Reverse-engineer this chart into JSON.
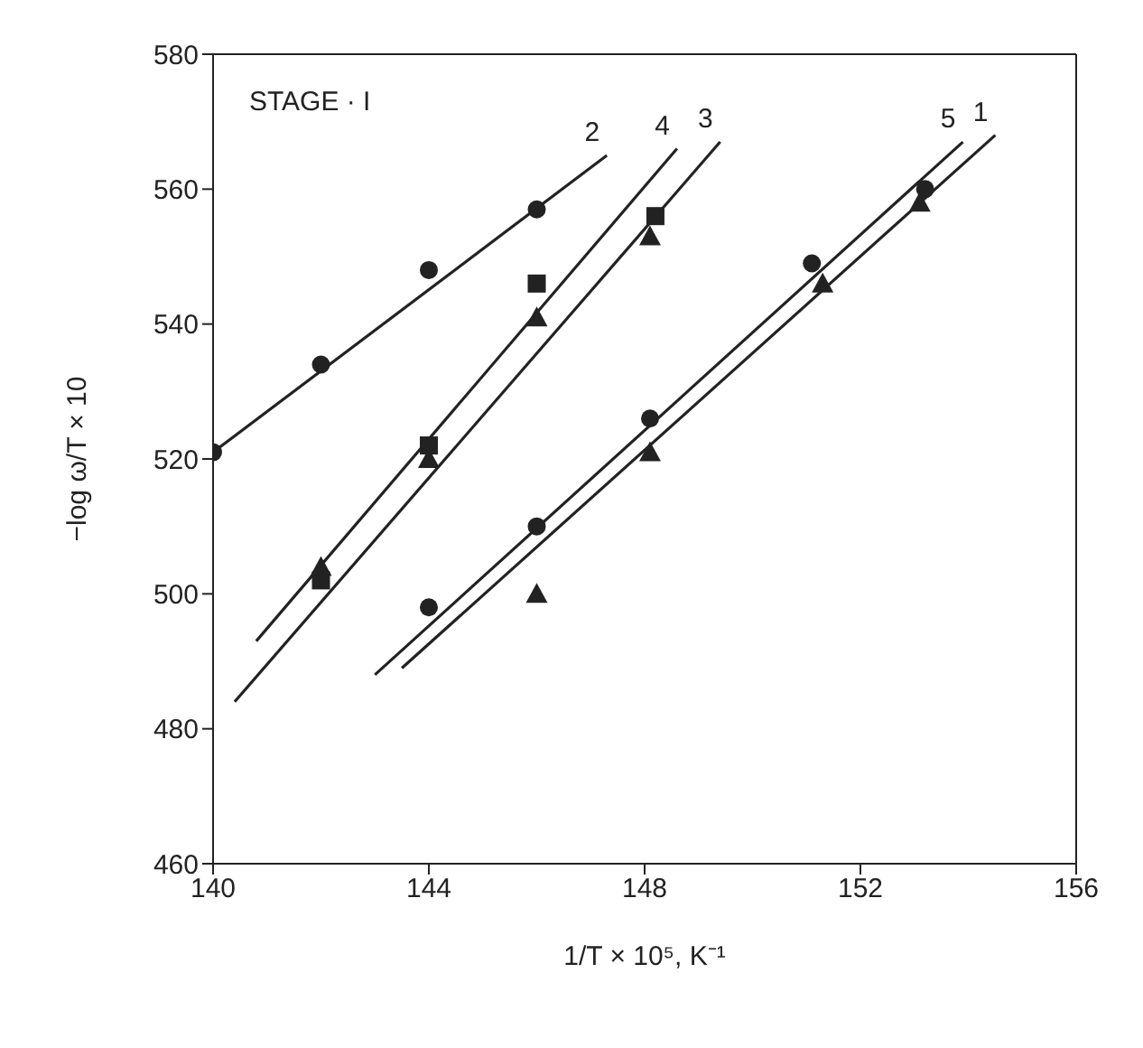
{
  "chart_data": {
    "type": "scatter",
    "xlabel": "1/T × 10⁵, K⁻¹",
    "ylabel": "−log ω/T × 10",
    "annotations": [
      "STAGE · I"
    ],
    "xlim": [
      140,
      156
    ],
    "xticks": [
      140,
      144,
      148,
      152,
      156
    ],
    "ylim": [
      460,
      580
    ],
    "yticks": [
      460,
      480,
      500,
      520,
      540,
      560,
      580
    ],
    "grid": false,
    "legend": false,
    "series": [
      {
        "marker": "triangle",
        "color": "#222222",
        "x": [
          153.1,
          151.3,
          148.1,
          146.0
        ],
        "values": [
          558,
          546,
          521,
          500
        ]
      },
      {
        "marker": "circle",
        "color": "#222222",
        "x": [
          146.0,
          144.0,
          142.0,
          140.0
        ],
        "values": [
          557,
          548,
          534,
          521
        ]
      },
      {
        "marker": "triangle",
        "color": "#222222",
        "x": [
          148.1,
          146.0,
          144.0,
          142.0
        ],
        "values": [
          553,
          541,
          520,
          504
        ]
      },
      {
        "marker": "square",
        "color": "#222222",
        "x": [
          148.2,
          146.0,
          144.0,
          142.0
        ],
        "values": [
          556,
          546,
          522,
          502
        ]
      },
      {
        "marker": "circle",
        "color": "#222222",
        "x": [
          153.2,
          151.1,
          148.1,
          146.0,
          144.0
        ],
        "values": [
          560,
          549,
          526,
          510,
          498
        ]
      },
      {
        "type": "line",
        "name": "1",
        "color": "#222222",
        "x": [
          154.5,
          143.5
        ],
        "values": [
          568,
          489
        ]
      },
      {
        "type": "line",
        "name": "2",
        "color": "#222222",
        "x": [
          147.3,
          140.0
        ],
        "values": [
          565,
          521
        ]
      },
      {
        "type": "line",
        "name": "3",
        "color": "#222222",
        "x": [
          149.4,
          140.4
        ],
        "values": [
          567,
          484
        ]
      },
      {
        "type": "line",
        "name": "4",
        "color": "#222222",
        "x": [
          148.6,
          140.8
        ],
        "values": [
          566,
          493
        ]
      },
      {
        "type": "line",
        "name": "5",
        "color": "#222222",
        "x": [
          153.9,
          143.0
        ],
        "values": [
          567,
          488
        ]
      }
    ]
  }
}
